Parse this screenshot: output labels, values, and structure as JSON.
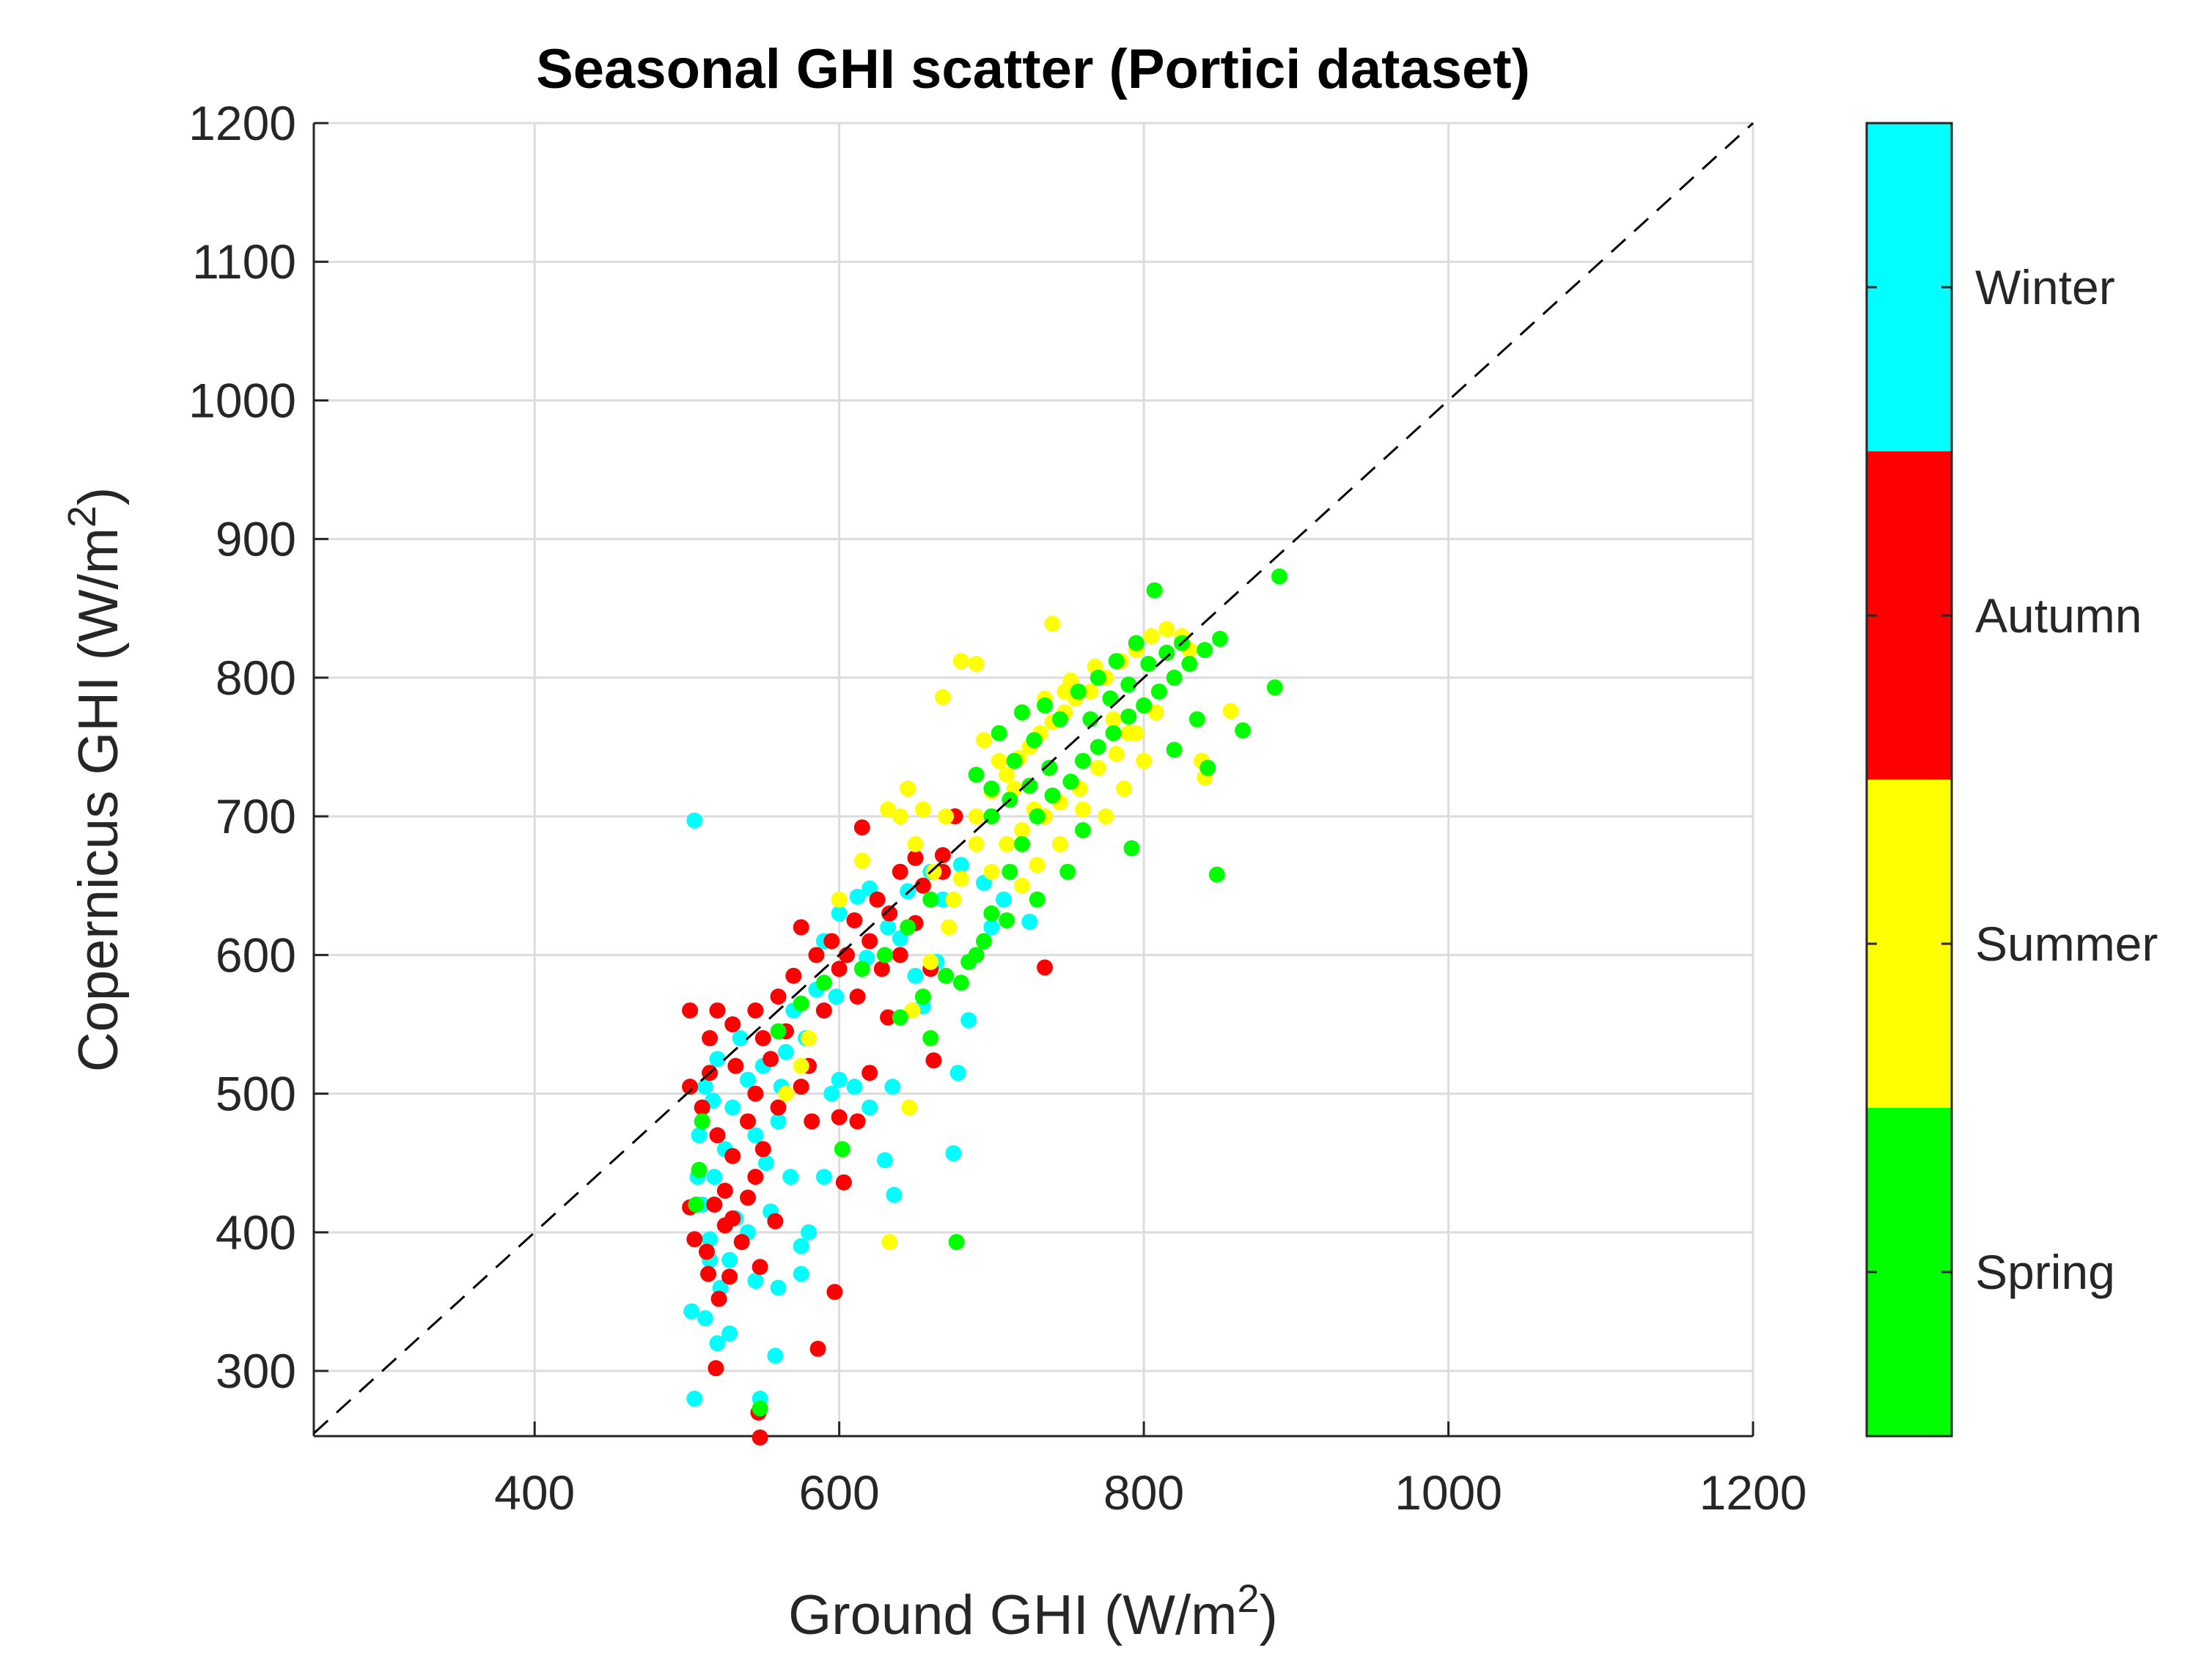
{
  "chart_data": {
    "type": "scatter",
    "title": "Seasonal GHI scatter (Portici dataset)",
    "xlabel": {
      "main": "Ground GHI (W/m",
      "sup": "2",
      "close": ")"
    },
    "ylabel": {
      "main": "Copernicus GHI (W/m",
      "sup": "2",
      "close": ")"
    },
    "xlim": [
      255,
      1200
    ],
    "ylim": [
      253,
      1200
    ],
    "xticks": [
      400,
      600,
      800,
      1000,
      1200
    ],
    "yticks": [
      300,
      400,
      500,
      600,
      700,
      800,
      900,
      1000,
      1100,
      1200
    ],
    "grid": true,
    "reference_line": {
      "label": "1:1",
      "style": "dashed",
      "color": "#000000"
    },
    "colorbar": {
      "position": "right",
      "categories": [
        {
          "label": "Spring",
          "color": "#00ff00"
        },
        {
          "label": "Summer",
          "color": "#ffff00"
        },
        {
          "label": "Autumn",
          "color": "#ff0000"
        },
        {
          "label": "Winter",
          "color": "#00ffff"
        }
      ]
    },
    "series": [
      {
        "name": "Winter",
        "color": "#00ffff",
        "points": [
          [
            505,
            697
          ],
          [
            503,
            343
          ],
          [
            505,
            280
          ],
          [
            512,
            338
          ],
          [
            520,
            320
          ],
          [
            528,
            327
          ],
          [
            548,
            280
          ],
          [
            558,
            311
          ],
          [
            560,
            360
          ],
          [
            575,
            370
          ],
          [
            575,
            390
          ],
          [
            580,
            400
          ],
          [
            590,
            440
          ],
          [
            595,
            500
          ],
          [
            600,
            510
          ],
          [
            610,
            505
          ],
          [
            620,
            490
          ],
          [
            630,
            452
          ],
          [
            635,
            505
          ],
          [
            636,
            427
          ],
          [
            655,
            563
          ],
          [
            664,
            595
          ],
          [
            675,
            457
          ],
          [
            678,
            515
          ],
          [
            685,
            553
          ],
          [
            690,
            600
          ],
          [
            700,
            620
          ],
          [
            510,
            420
          ],
          [
            518,
            440
          ],
          [
            525,
            460
          ],
          [
            530,
            490
          ],
          [
            540,
            510
          ],
          [
            545,
            470
          ],
          [
            552,
            450
          ],
          [
            560,
            480
          ],
          [
            565,
            530
          ],
          [
            570,
            560
          ],
          [
            585,
            575
          ],
          [
            590,
            610
          ],
          [
            600,
            630
          ],
          [
            612,
            642
          ],
          [
            620,
            648
          ],
          [
            640,
            612
          ],
          [
            650,
            585
          ],
          [
            668,
            640
          ],
          [
            680,
            665
          ],
          [
            695,
            652
          ],
          [
            708,
            640
          ],
          [
            725,
            624
          ],
          [
            545,
            365
          ],
          [
            532,
            410
          ],
          [
            515,
            395
          ],
          [
            508,
            470
          ],
          [
            512,
            505
          ],
          [
            520,
            525
          ],
          [
            535,
            540
          ],
          [
            550,
            520
          ],
          [
            562,
            505
          ],
          [
            578,
            540
          ],
          [
            598,
            570
          ],
          [
            618,
            598
          ],
          [
            632,
            620
          ],
          [
            645,
            646
          ],
          [
            660,
            660
          ],
          [
            540,
            400
          ],
          [
            528,
            380
          ],
          [
            522,
            360
          ],
          [
            515,
            380
          ],
          [
            507,
            440
          ],
          [
            517,
            495
          ],
          [
            555,
            415
          ],
          [
            568,
            440
          ]
        ]
      },
      {
        "name": "Autumn",
        "color": "#ff0000",
        "points": [
          [
            548,
            252
          ],
          [
            547,
            270
          ],
          [
            519,
            302
          ],
          [
            586,
            316
          ],
          [
            597,
            357
          ],
          [
            521,
            352
          ],
          [
            528,
            368
          ],
          [
            548,
            375
          ],
          [
            536,
            393
          ],
          [
            513,
            386
          ],
          [
            525,
            405
          ],
          [
            502,
            418
          ],
          [
            540,
            425
          ],
          [
            558,
            408
          ],
          [
            545,
            440
          ],
          [
            530,
            455
          ],
          [
            520,
            470
          ],
          [
            510,
            490
          ],
          [
            502,
            505
          ],
          [
            515,
            515
          ],
          [
            532,
            520
          ],
          [
            545,
            500
          ],
          [
            560,
            490
          ],
          [
            575,
            505
          ],
          [
            582,
            480
          ],
          [
            600,
            483
          ],
          [
            603,
            436
          ],
          [
            612,
            480
          ],
          [
            620,
            515
          ],
          [
            628,
            590
          ],
          [
            640,
            600
          ],
          [
            650,
            623
          ],
          [
            660,
            590
          ],
          [
            668,
            660
          ],
          [
            676,
            700
          ],
          [
            662,
            524
          ],
          [
            735,
            591
          ],
          [
            615,
            692
          ],
          [
            640,
            660
          ],
          [
            650,
            670
          ],
          [
            625,
            640
          ],
          [
            610,
            625
          ],
          [
            595,
            610
          ],
          [
            585,
            600
          ],
          [
            570,
            585
          ],
          [
            560,
            570
          ],
          [
            545,
            560
          ],
          [
            530,
            550
          ],
          [
            515,
            540
          ],
          [
            502,
            560
          ],
          [
            520,
            560
          ],
          [
            575,
            620
          ],
          [
            605,
            600
          ],
          [
            633,
            630
          ],
          [
            655,
            650
          ],
          [
            668,
            672
          ],
          [
            550,
            540
          ],
          [
            565,
            545
          ],
          [
            580,
            520
          ],
          [
            540,
            480
          ],
          [
            525,
            430
          ],
          [
            518,
            420
          ],
          [
            530,
            410
          ],
          [
            550,
            460
          ],
          [
            505,
            395
          ],
          [
            514,
            370
          ],
          [
            555,
            525
          ],
          [
            590,
            560
          ],
          [
            612,
            570
          ],
          [
            632,
            555
          ],
          [
            600,
            590
          ],
          [
            620,
            610
          ]
        ]
      },
      {
        "name": "Summer",
        "color": "#ffff00",
        "points": [
          [
            633,
            393
          ],
          [
            646,
            490
          ],
          [
            648,
            560
          ],
          [
            660,
            595
          ],
          [
            672,
            620
          ],
          [
            680,
            655
          ],
          [
            690,
            700
          ],
          [
            700,
            718
          ],
          [
            710,
            730
          ],
          [
            718,
            742
          ],
          [
            725,
            750
          ],
          [
            732,
            760
          ],
          [
            740,
            768
          ],
          [
            748,
            775
          ],
          [
            755,
            785
          ],
          [
            765,
            790
          ],
          [
            775,
            800
          ],
          [
            785,
            812
          ],
          [
            795,
            820
          ],
          [
            805,
            830
          ],
          [
            815,
            835
          ],
          [
            825,
            830
          ],
          [
            838,
            740
          ],
          [
            840,
            728
          ],
          [
            857,
            776
          ],
          [
            830,
            820
          ],
          [
            680,
            812
          ],
          [
            690,
            810
          ],
          [
            668,
            786
          ],
          [
            640,
            700
          ],
          [
            650,
            680
          ],
          [
            662,
            660
          ],
          [
            675,
            640
          ],
          [
            700,
            660
          ],
          [
            710,
            680
          ],
          [
            720,
            690
          ],
          [
            735,
            700
          ],
          [
            745,
            710
          ],
          [
            758,
            720
          ],
          [
            770,
            735
          ],
          [
            782,
            745
          ],
          [
            790,
            760
          ],
          [
            760,
            705
          ],
          [
            740,
            839
          ],
          [
            748,
            790
          ],
          [
            728,
            705
          ],
          [
            715,
            720
          ],
          [
            705,
            740
          ],
          [
            695,
            755
          ],
          [
            720,
            775
          ],
          [
            735,
            785
          ],
          [
            752,
            798
          ],
          [
            768,
            808
          ],
          [
            780,
            770
          ],
          [
            795,
            760
          ],
          [
            808,
            775
          ],
          [
            645,
            720
          ],
          [
            632,
            705
          ],
          [
            615,
            668
          ],
          [
            600,
            640
          ],
          [
            720,
            650
          ],
          [
            730,
            665
          ],
          [
            745,
            680
          ],
          [
            775,
            700
          ],
          [
            787,
            720
          ],
          [
            800,
            740
          ],
          [
            690,
            680
          ],
          [
            670,
            700
          ],
          [
            655,
            705
          ],
          [
            580,
            540
          ],
          [
            565,
            500
          ],
          [
            575,
            520
          ]
        ]
      },
      {
        "name": "Spring",
        "color": "#00ff00",
        "points": [
          [
            548,
            273
          ],
          [
            677,
            393
          ],
          [
            602,
            460
          ],
          [
            660,
            540
          ],
          [
            680,
            580
          ],
          [
            690,
            600
          ],
          [
            700,
            630
          ],
          [
            712,
            660
          ],
          [
            720,
            680
          ],
          [
            730,
            700
          ],
          [
            740,
            715
          ],
          [
            752,
            725
          ],
          [
            760,
            740
          ],
          [
            770,
            750
          ],
          [
            780,
            760
          ],
          [
            790,
            772
          ],
          [
            800,
            780
          ],
          [
            810,
            790
          ],
          [
            820,
            800
          ],
          [
            830,
            810
          ],
          [
            840,
            820
          ],
          [
            850,
            828
          ],
          [
            807,
            863
          ],
          [
            889,
            873
          ],
          [
            886,
            793
          ],
          [
            848,
            658
          ],
          [
            835,
            770
          ],
          [
            842,
            735
          ],
          [
            820,
            748
          ],
          [
            865,
            762
          ],
          [
            792,
            677
          ],
          [
            760,
            690
          ],
          [
            750,
            660
          ],
          [
            730,
            640
          ],
          [
            710,
            625
          ],
          [
            695,
            610
          ],
          [
            685,
            595
          ],
          [
            670,
            585
          ],
          [
            655,
            570
          ],
          [
            640,
            555
          ],
          [
            700,
            720
          ],
          [
            715,
            740
          ],
          [
            728,
            755
          ],
          [
            745,
            770
          ],
          [
            757,
            790
          ],
          [
            770,
            800
          ],
          [
            782,
            812
          ],
          [
            795,
            825
          ],
          [
            690,
            730
          ],
          [
            705,
            760
          ],
          [
            720,
            775
          ],
          [
            735,
            780
          ],
          [
            660,
            640
          ],
          [
            645,
            620
          ],
          [
            630,
            600
          ],
          [
            615,
            590
          ],
          [
            510,
            480
          ],
          [
            508,
            445
          ],
          [
            506,
            420
          ],
          [
            560,
            545
          ],
          [
            575,
            565
          ],
          [
            590,
            580
          ],
          [
            700,
            700
          ],
          [
            712,
            712
          ],
          [
            725,
            722
          ],
          [
            738,
            735
          ],
          [
            765,
            770
          ],
          [
            778,
            785
          ],
          [
            790,
            795
          ],
          [
            803,
            810
          ],
          [
            815,
            818
          ],
          [
            825,
            825
          ]
        ]
      }
    ]
  }
}
